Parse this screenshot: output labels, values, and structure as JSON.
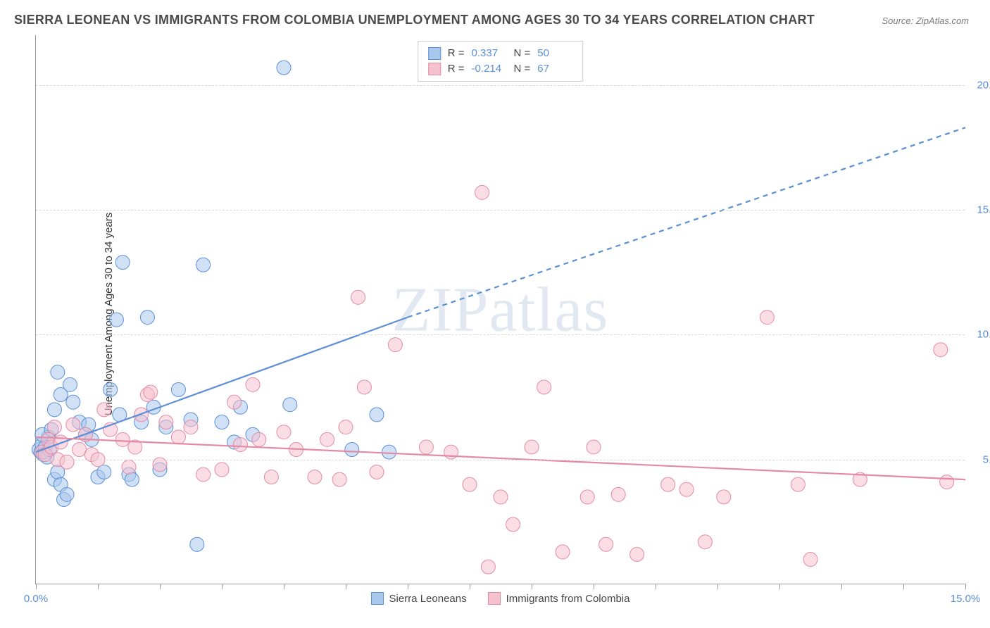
{
  "title": "SIERRA LEONEAN VS IMMIGRANTS FROM COLOMBIA UNEMPLOYMENT AMONG AGES 30 TO 34 YEARS CORRELATION CHART",
  "source": "Source: ZipAtlas.com",
  "ylabel": "Unemployment Among Ages 30 to 34 years",
  "watermark_a": "ZIP",
  "watermark_b": "atlas",
  "chart": {
    "type": "scatter",
    "background_color": "#ffffff",
    "grid_color": "#d8d8d8",
    "axis_color": "#999999",
    "tick_label_color": "#5b8fd6",
    "x": {
      "min": 0,
      "max": 15,
      "ticks": [
        0,
        5,
        10,
        15
      ],
      "tick_labels": [
        "0.0%",
        "",
        "",
        "15.0%"
      ],
      "minor_ticks": [
        1,
        2,
        3,
        4,
        6,
        7,
        8,
        9,
        11,
        12,
        13,
        14
      ]
    },
    "y": {
      "min": 0,
      "max": 22,
      "ticks": [
        5,
        10,
        15,
        20
      ],
      "tick_labels": [
        "5.0%",
        "10.0%",
        "15.0%",
        "20.0%"
      ]
    },
    "marker_radius": 10,
    "marker_opacity": 0.55,
    "line_width": 2.2
  },
  "series": [
    {
      "name": "Sierra Leoneans",
      "color_fill": "#a9c8ed",
      "color_stroke": "#5b8fd6",
      "r": "0.337",
      "n": "50",
      "trend": {
        "x1": 0,
        "y1": 5.3,
        "x2_solid": 6.0,
        "y2_solid": 10.7,
        "x2_dash": 15,
        "y2_dash": 18.3
      },
      "points": [
        [
          0.05,
          5.4
        ],
        [
          0.08,
          5.3
        ],
        [
          0.1,
          5.6
        ],
        [
          0.12,
          5.2
        ],
        [
          0.15,
          5.5
        ],
        [
          0.18,
          5.1
        ],
        [
          0.2,
          5.9
        ],
        [
          0.22,
          5.4
        ],
        [
          0.1,
          6.0
        ],
        [
          0.25,
          6.2
        ],
        [
          0.3,
          4.2
        ],
        [
          0.35,
          4.5
        ],
        [
          0.4,
          4.0
        ],
        [
          0.45,
          3.4
        ],
        [
          0.5,
          3.6
        ],
        [
          0.3,
          7.0
        ],
        [
          0.35,
          8.5
        ],
        [
          0.4,
          7.6
        ],
        [
          0.55,
          8.0
        ],
        [
          0.6,
          7.3
        ],
        [
          0.7,
          6.5
        ],
        [
          0.8,
          6.0
        ],
        [
          0.85,
          6.4
        ],
        [
          0.9,
          5.8
        ],
        [
          1.0,
          4.3
        ],
        [
          1.1,
          4.5
        ],
        [
          1.2,
          7.8
        ],
        [
          1.3,
          10.6
        ],
        [
          1.35,
          6.8
        ],
        [
          1.4,
          12.9
        ],
        [
          1.5,
          4.4
        ],
        [
          1.55,
          4.2
        ],
        [
          1.7,
          6.5
        ],
        [
          1.8,
          10.7
        ],
        [
          1.9,
          7.1
        ],
        [
          2.0,
          4.6
        ],
        [
          2.1,
          6.3
        ],
        [
          2.3,
          7.8
        ],
        [
          2.5,
          6.6
        ],
        [
          2.6,
          1.6
        ],
        [
          2.7,
          12.8
        ],
        [
          3.0,
          6.5
        ],
        [
          3.2,
          5.7
        ],
        [
          3.3,
          7.1
        ],
        [
          3.5,
          6.0
        ],
        [
          4.0,
          20.7
        ],
        [
          4.1,
          7.2
        ],
        [
          5.1,
          5.4
        ],
        [
          5.5,
          6.8
        ],
        [
          5.7,
          5.3
        ]
      ]
    },
    {
      "name": "Immigrants from Colombia",
      "color_fill": "#f5c1cf",
      "color_stroke": "#e48aa4",
      "r": "-0.214",
      "n": "67",
      "trend": {
        "x1": 0,
        "y1": 5.9,
        "x2_solid": 15,
        "y2_solid": 4.2,
        "x2_dash": 15,
        "y2_dash": 4.2
      },
      "points": [
        [
          0.1,
          5.3
        ],
        [
          0.15,
          5.2
        ],
        [
          0.2,
          5.8
        ],
        [
          0.25,
          5.5
        ],
        [
          0.3,
          6.3
        ],
        [
          0.35,
          5.0
        ],
        [
          0.4,
          5.7
        ],
        [
          0.5,
          4.9
        ],
        [
          0.6,
          6.4
        ],
        [
          0.7,
          5.4
        ],
        [
          0.8,
          6.0
        ],
        [
          0.9,
          5.2
        ],
        [
          1.0,
          5.0
        ],
        [
          1.1,
          7.0
        ],
        [
          1.2,
          6.2
        ],
        [
          1.4,
          5.8
        ],
        [
          1.5,
          4.7
        ],
        [
          1.6,
          5.5
        ],
        [
          1.7,
          6.8
        ],
        [
          1.8,
          7.6
        ],
        [
          1.85,
          7.7
        ],
        [
          2.0,
          4.8
        ],
        [
          2.1,
          6.5
        ],
        [
          2.3,
          5.9
        ],
        [
          2.5,
          6.3
        ],
        [
          2.7,
          4.4
        ],
        [
          3.0,
          4.6
        ],
        [
          3.2,
          7.3
        ],
        [
          3.3,
          5.6
        ],
        [
          3.5,
          8.0
        ],
        [
          3.6,
          5.8
        ],
        [
          3.8,
          4.3
        ],
        [
          4.0,
          6.1
        ],
        [
          4.2,
          5.4
        ],
        [
          4.5,
          4.3
        ],
        [
          4.7,
          5.8
        ],
        [
          4.9,
          4.2
        ],
        [
          5.0,
          6.3
        ],
        [
          5.2,
          11.5
        ],
        [
          5.3,
          7.9
        ],
        [
          5.5,
          4.5
        ],
        [
          5.8,
          9.6
        ],
        [
          6.3,
          5.5
        ],
        [
          6.7,
          5.3
        ],
        [
          7.0,
          4.0
        ],
        [
          7.2,
          15.7
        ],
        [
          7.3,
          0.7
        ],
        [
          7.5,
          3.5
        ],
        [
          7.7,
          2.4
        ],
        [
          8.0,
          5.5
        ],
        [
          8.2,
          7.9
        ],
        [
          8.5,
          1.3
        ],
        [
          8.9,
          3.5
        ],
        [
          9.0,
          5.5
        ],
        [
          9.2,
          1.6
        ],
        [
          9.4,
          3.6
        ],
        [
          9.7,
          1.2
        ],
        [
          10.2,
          4.0
        ],
        [
          10.5,
          3.8
        ],
        [
          10.8,
          1.7
        ],
        [
          11.1,
          3.5
        ],
        [
          11.8,
          10.7
        ],
        [
          12.3,
          4.0
        ],
        [
          12.5,
          1.0
        ],
        [
          13.3,
          4.2
        ],
        [
          14.6,
          9.4
        ],
        [
          14.7,
          4.1
        ]
      ]
    }
  ]
}
